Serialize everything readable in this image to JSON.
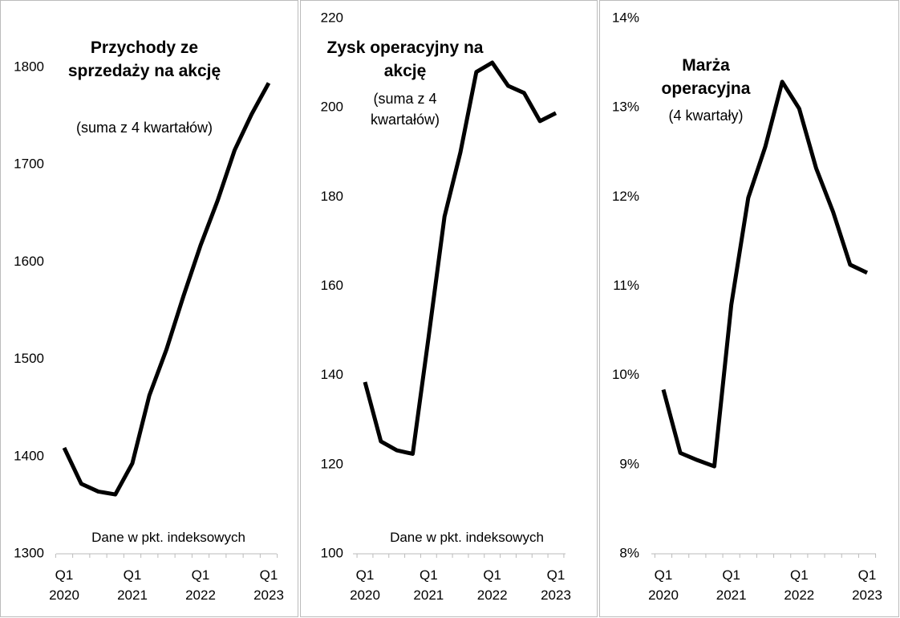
{
  "chart_data": [
    {
      "type": "line",
      "title": "Przychody ze sprzedaży na akcję",
      "subtitle": "(suma z 4 kwartałów)",
      "annotation": "Dane w pkt. indeksowych",
      "categories": [
        "Q1 2020",
        null,
        null,
        null,
        "Q1 2021",
        null,
        null,
        null,
        "Q1 2022",
        null,
        null,
        null,
        "Q1 2023"
      ],
      "values": [
        1409,
        1372,
        1364,
        1361,
        1393,
        1463,
        1510,
        1565,
        1617,
        1663,
        1715,
        1752,
        1784
      ],
      "color": "#000000",
      "ylim": [
        1300,
        1800
      ],
      "yticks": [
        1300,
        1400,
        1500,
        1600,
        1700,
        1800
      ]
    },
    {
      "type": "line",
      "title": "Zysk operacyjny na akcję",
      "subtitle": "(suma z 4 kwartałów)",
      "annotation": "Dane w pkt. indeksowych",
      "categories": [
        "Q1 2020",
        null,
        null,
        null,
        "Q1 2021",
        null,
        null,
        null,
        "Q1 2022",
        null,
        null,
        null,
        "Q1 2023"
      ],
      "values": [
        138.5,
        125.2,
        123.2,
        122.4,
        148.6,
        175.6,
        190,
        208,
        210.1,
        204.9,
        203.3,
        197,
        198.8
      ],
      "color": "#000000",
      "ylim": [
        100,
        220
      ],
      "yticks": [
        100,
        120,
        140,
        160,
        180,
        200,
        220
      ]
    },
    {
      "type": "line",
      "title": "Marża operacyjna",
      "subtitle": "(4 kwartały)",
      "categories": [
        "Q1 2020",
        null,
        null,
        null,
        "Q1 2021",
        null,
        null,
        null,
        "Q1 2022",
        null,
        null,
        null,
        "Q1 2023"
      ],
      "values": [
        9.84,
        9.13,
        9.05,
        8.98,
        10.79,
        11.99,
        12.56,
        13.29,
        12.99,
        12.32,
        11.83,
        11.24,
        11.15
      ],
      "color": "#000000",
      "ylim": [
        8,
        14
      ],
      "yticks": [
        {
          "value": 8,
          "label": "8%"
        },
        {
          "value": 9,
          "label": "9%"
        },
        {
          "value": 10,
          "label": "10%"
        },
        {
          "value": 11,
          "label": "11%"
        },
        {
          "value": 12,
          "label": "12%"
        },
        {
          "value": 13,
          "label": "13%"
        },
        {
          "value": 14,
          "label": "14%"
        }
      ]
    }
  ]
}
